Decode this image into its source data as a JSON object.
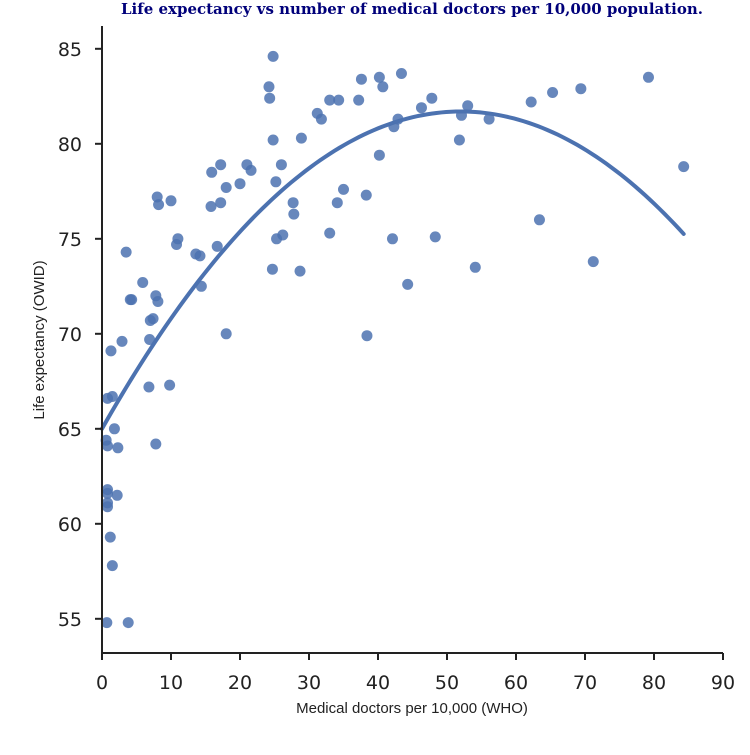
{
  "chart_data": {
    "type": "scatter",
    "title": "Life expectancy vs number of medical doctors per 10,000 population.",
    "xlabel": "Medical doctors per 10,000 (WHO)",
    "ylabel": "Life expectancy (OWID)",
    "xlim": [
      0,
      90
    ],
    "ylim": [
      53.2,
      86.2
    ],
    "xticks": [
      0,
      10,
      20,
      30,
      40,
      50,
      60,
      70,
      80,
      90
    ],
    "yticks": [
      55,
      60,
      65,
      70,
      75,
      80,
      85
    ],
    "grid": false,
    "colors": {
      "points": "#4c72b0",
      "fit_line": "#4c72b0",
      "title": "#00007a",
      "axis": "#222222"
    },
    "points": [
      [
        0.7,
        54.8
      ],
      [
        3.8,
        54.8
      ],
      [
        1.5,
        57.8
      ],
      [
        1.2,
        59.3
      ],
      [
        0.8,
        60.9
      ],
      [
        0.8,
        61.1
      ],
      [
        0.8,
        61.6
      ],
      [
        0.8,
        61.8
      ],
      [
        2.2,
        61.5
      ],
      [
        0.8,
        64.1
      ],
      [
        0.6,
        64.4
      ],
      [
        2.3,
        64.0
      ],
      [
        7.8,
        64.2
      ],
      [
        1.8,
        65.0
      ],
      [
        1.5,
        66.7
      ],
      [
        0.8,
        66.6
      ],
      [
        6.8,
        67.2
      ],
      [
        9.8,
        67.3
      ],
      [
        1.3,
        69.1
      ],
      [
        2.9,
        69.6
      ],
      [
        6.9,
        69.7
      ],
      [
        18.0,
        70.0
      ],
      [
        7.0,
        70.7
      ],
      [
        7.4,
        70.8
      ],
      [
        7.8,
        72.0
      ],
      [
        8.1,
        71.7
      ],
      [
        4.1,
        71.8
      ],
      [
        4.3,
        71.8
      ],
      [
        5.9,
        72.7
      ],
      [
        14.4,
        72.5
      ],
      [
        3.5,
        74.3
      ],
      [
        13.6,
        74.2
      ],
      [
        14.2,
        74.1
      ],
      [
        10.8,
        74.7
      ],
      [
        11.0,
        75.0
      ],
      [
        16.7,
        74.6
      ],
      [
        8.2,
        76.8
      ],
      [
        8.0,
        77.2
      ],
      [
        10.0,
        77.0
      ],
      [
        15.8,
        76.7
      ],
      [
        17.2,
        76.9
      ],
      [
        18.0,
        77.7
      ],
      [
        20.0,
        77.9
      ],
      [
        15.9,
        78.5
      ],
      [
        17.2,
        78.9
      ],
      [
        21.0,
        78.9
      ],
      [
        21.6,
        78.6
      ],
      [
        24.2,
        83.0
      ],
      [
        24.3,
        82.4
      ],
      [
        24.8,
        84.6
      ],
      [
        24.8,
        80.2
      ],
      [
        25.2,
        78.0
      ],
      [
        26.0,
        78.9
      ],
      [
        24.7,
        73.4
      ],
      [
        25.3,
        75.0
      ],
      [
        26.2,
        75.2
      ],
      [
        27.7,
        76.9
      ],
      [
        27.8,
        76.3
      ],
      [
        28.7,
        73.3
      ],
      [
        28.9,
        80.3
      ],
      [
        31.2,
        81.6
      ],
      [
        31.8,
        81.3
      ],
      [
        33.0,
        82.3
      ],
      [
        34.3,
        82.3
      ],
      [
        33.0,
        75.3
      ],
      [
        34.1,
        76.9
      ],
      [
        35.0,
        77.6
      ],
      [
        37.2,
        82.3
      ],
      [
        37.6,
        83.4
      ],
      [
        38.3,
        77.3
      ],
      [
        38.4,
        69.9
      ],
      [
        40.2,
        83.5
      ],
      [
        40.7,
        83.0
      ],
      [
        40.2,
        79.4
      ],
      [
        42.1,
        75.0
      ],
      [
        42.3,
        80.9
      ],
      [
        42.9,
        81.3
      ],
      [
        43.4,
        83.7
      ],
      [
        44.3,
        72.6
      ],
      [
        46.3,
        81.9
      ],
      [
        47.8,
        82.4
      ],
      [
        48.3,
        75.1
      ],
      [
        51.8,
        80.2
      ],
      [
        52.1,
        81.5
      ],
      [
        53.0,
        82.0
      ],
      [
        54.1,
        73.5
      ],
      [
        56.1,
        81.3
      ],
      [
        62.2,
        82.2
      ],
      [
        63.4,
        76.0
      ],
      [
        65.3,
        82.7
      ],
      [
        69.4,
        82.9
      ],
      [
        71.2,
        73.8
      ],
      [
        79.2,
        83.5
      ],
      [
        84.3,
        78.8
      ]
    ],
    "fit_line": {
      "type": "quadratic",
      "x_range": [
        0,
        84.3
      ],
      "x_peak": 52.0,
      "y_peak": 81.7,
      "y_at_x0": 65.0
    }
  }
}
